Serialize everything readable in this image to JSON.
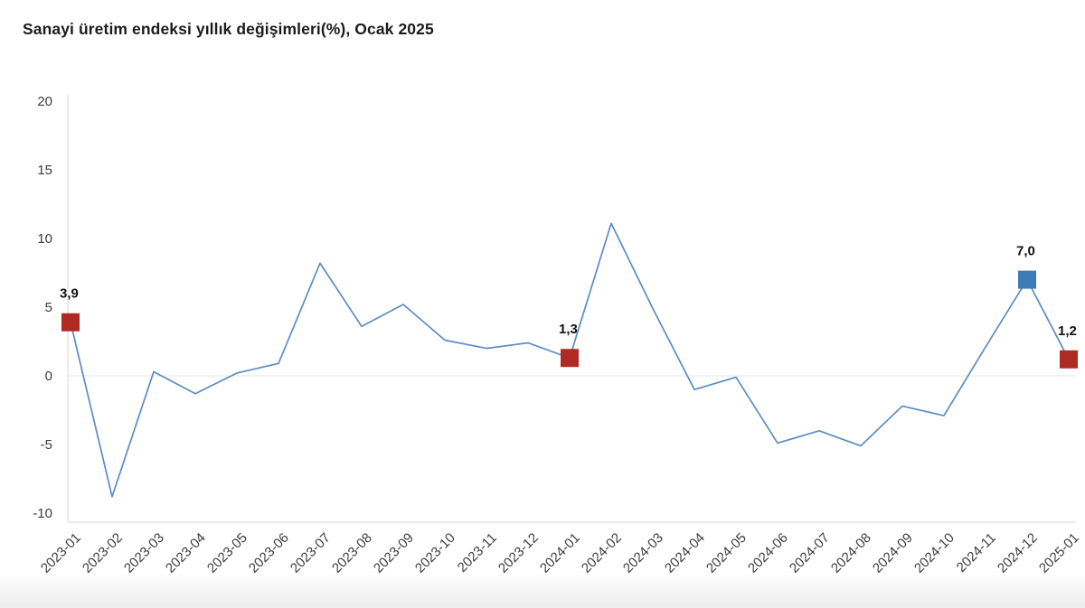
{
  "title": "Sanayi üretim endeksi yıllık değişimleri(%), Ocak 2025",
  "chart_data": {
    "type": "line",
    "title": "Sanayi üretim endeksi yıllık değişimleri(%), Ocak 2025",
    "x": [
      "2023-01",
      "2023-02",
      "2023-03",
      "2023-04",
      "2023-05",
      "2023-06",
      "2023-07",
      "2023-08",
      "2023-09",
      "2023-10",
      "2023-11",
      "2023-12",
      "2024-01",
      "2024-02",
      "2024-03",
      "2024-04",
      "2024-05",
      "2024-06",
      "2024-07",
      "2024-08",
      "2024-09",
      "2024-10",
      "2024-11",
      "2024-12",
      "2025-01"
    ],
    "values": [
      3.9,
      -8.8,
      0.3,
      -1.3,
      0.2,
      0.9,
      8.2,
      3.6,
      5.2,
      2.6,
      2.0,
      2.4,
      1.3,
      11.1,
      4.9,
      -1.0,
      -0.1,
      -4.9,
      -4.0,
      -5.1,
      -2.2,
      -2.9,
      2.1,
      7.0,
      1.2
    ],
    "xlabel": "",
    "ylabel": "",
    "ylim": [
      -10,
      20
    ],
    "yticks": [
      20,
      15,
      10,
      5,
      0,
      -5,
      -10
    ],
    "grid": "zero-line-only",
    "legend_position": "none",
    "line_color": "#5d8cc2",
    "highlighted_points": [
      {
        "x": "2023-01",
        "value": 3.9,
        "label": "3,9",
        "marker_color": "#b02a24"
      },
      {
        "x": "2024-01",
        "value": 1.3,
        "label": "1,3",
        "marker_color": "#b02a24"
      },
      {
        "x": "2024-12",
        "value": 7.0,
        "label": "7,0",
        "marker_color": "#3e7ab7"
      },
      {
        "x": "2025-01",
        "value": 1.2,
        "label": "1,2",
        "marker_color": "#b02a24"
      }
    ]
  }
}
